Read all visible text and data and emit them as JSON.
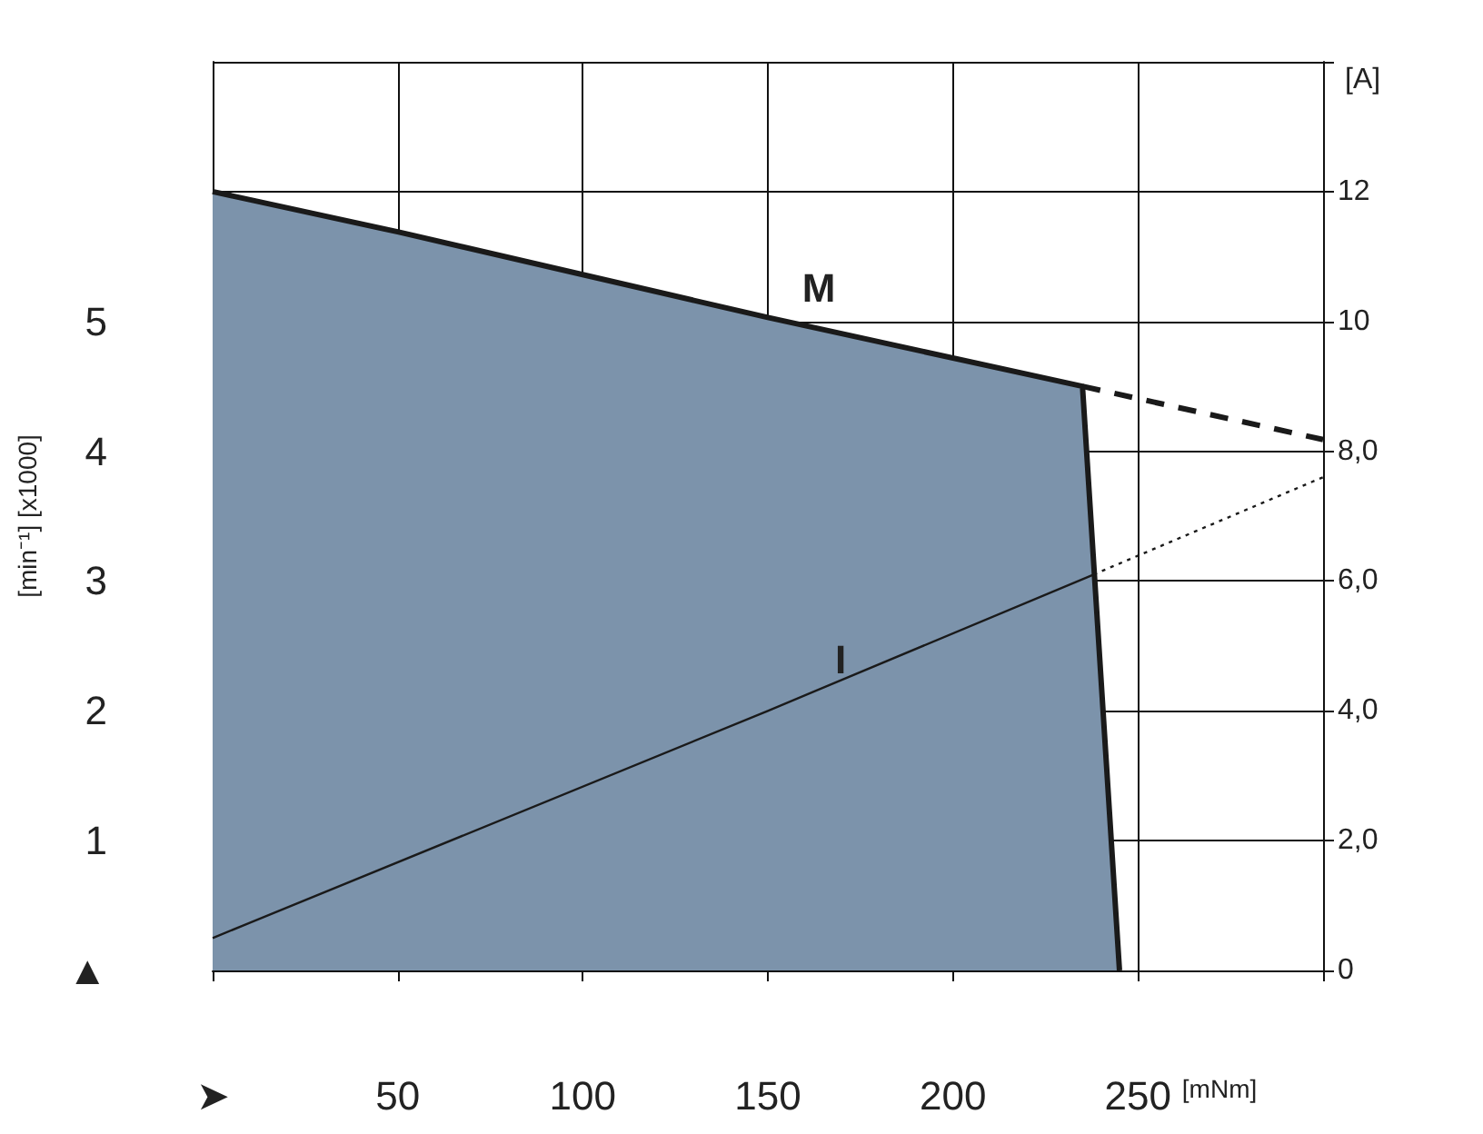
{
  "chart_data": {
    "type": "area",
    "xlabel": "[mNm]",
    "ylabel": "[min⁻¹] [x1000]",
    "y2label": "[A]",
    "xlim": [
      0,
      300
    ],
    "xticks": [
      {
        "value": 0,
        "label": "➤"
      },
      50,
      100,
      150,
      200,
      250,
      {
        "value": 300,
        "label": null
      }
    ],
    "ylim": [
      0,
      7
    ],
    "yticks": [
      {
        "value": 0,
        "label": "▲"
      },
      1,
      2,
      3,
      4,
      5,
      {
        "value": 6,
        "label": null
      },
      {
        "value": 7,
        "label": null
      }
    ],
    "y2lim": [
      0,
      14
    ],
    "y2ticks": [
      0,
      {
        "value": 2,
        "label": "2,0"
      },
      {
        "value": 4,
        "label": "4,0"
      },
      {
        "value": 6,
        "label": "6,0"
      },
      {
        "value": 8,
        "label": "8,0"
      },
      10,
      12,
      {
        "value": 14,
        "label": null
      }
    ],
    "grid": true,
    "legend": false,
    "marker": "none",
    "series": [
      {
        "name": "M",
        "color": "#7c93ab",
        "x": [
          0,
          50,
          100,
          150,
          235,
          245
        ],
        "values": [
          6.0,
          5.69,
          5.36,
          5.03,
          4.5,
          0
        ],
        "line_style": "solid"
      },
      {
        "type": "line",
        "color": "#1a1a1a",
        "x": [
          235,
          300
        ],
        "values": [
          4.5,
          4.09
        ],
        "line_style": "dashed"
      },
      {
        "name": "I",
        "type": "line",
        "color": "#1a1a1a",
        "axis": "y2",
        "x": [
          0,
          150,
          238
        ],
        "values": [
          0.5,
          4.0,
          6.1
        ],
        "line_style": "solid"
      },
      {
        "type": "line",
        "color": "#1a1a1a",
        "axis": "y2",
        "x": [
          238,
          300
        ],
        "values": [
          6.1,
          7.6
        ],
        "line_style": "dotted"
      }
    ]
  }
}
